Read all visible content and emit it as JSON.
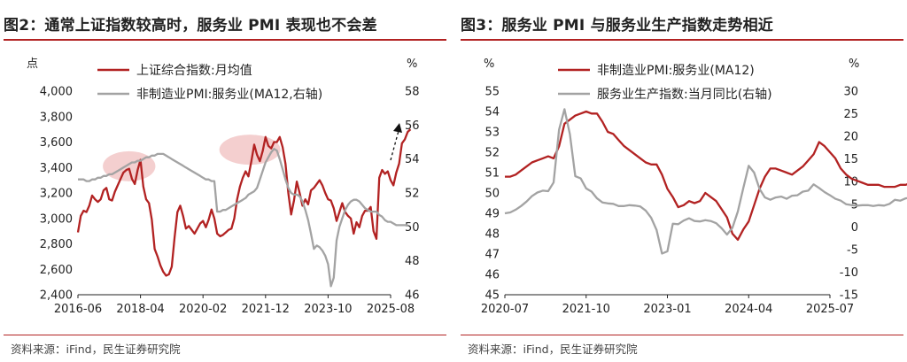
{
  "left": {
    "title": "图2：通常上证指数较高时，服务业 PMI 表现也不会差",
    "source": "资料来源：iFind，民生证券研究院",
    "left_unit": "点",
    "right_unit": "%",
    "annotation_arrow": "dashed-up-arrow",
    "highlight_color": "#f2c7c7",
    "chart_data": {
      "type": "line",
      "x_tick_labels": [
        "2016-06",
        "2018-04",
        "2020-02",
        "2021-12",
        "2023-10",
        "2025-08"
      ],
      "x_range": [
        "2016-06",
        "2025-08"
      ],
      "left_axis": {
        "ylim": [
          2400,
          4000
        ],
        "ticks": [
          "2,400",
          "2,600",
          "2,800",
          "3,000",
          "3,200",
          "3,400",
          "3,600",
          "3,800",
          "4,000"
        ]
      },
      "right_axis": {
        "ylim": [
          46,
          58
        ],
        "ticks": [
          "46",
          "48",
          "50",
          "52",
          "54",
          "56",
          "58"
        ]
      },
      "series": [
        {
          "name": "上证综合指数:月均值",
          "axis": "left",
          "color": "#b22222",
          "start": "2016-06",
          "values": [
            2890,
            3020,
            3060,
            3050,
            3100,
            3180,
            3150,
            3130,
            3150,
            3220,
            3240,
            3150,
            3140,
            3210,
            3260,
            3310,
            3360,
            3380,
            3390,
            3310,
            3270,
            3380,
            3460,
            3250,
            3150,
            3120,
            2990,
            2760,
            2700,
            2630,
            2580,
            2550,
            2560,
            2620,
            2850,
            3050,
            3100,
            3020,
            2920,
            2940,
            2910,
            2880,
            2920,
            2960,
            2980,
            2930,
            2990,
            3070,
            3000,
            2880,
            2860,
            2870,
            2890,
            2910,
            2920,
            3000,
            3150,
            3250,
            3320,
            3370,
            3330,
            3450,
            3580,
            3500,
            3450,
            3530,
            3640,
            3570,
            3550,
            3600,
            3600,
            3640,
            3560,
            3430,
            3200,
            3030,
            3140,
            3290,
            3200,
            3100,
            3150,
            3110,
            3220,
            3240,
            3270,
            3300,
            3260,
            3200,
            3150,
            3140,
            3080,
            2980,
            3050,
            3120,
            3050,
            3020,
            3000,
            2880,
            2970,
            2930,
            3020,
            3060,
            3060,
            3090,
            2900,
            2840,
            3320,
            3380,
            3350,
            3370,
            3300,
            3260,
            3360,
            3430,
            3590,
            3620,
            3680,
            3700
          ],
          "highlights": [
            {
              "from": "2017-04",
              "to": "2018-08",
              "center": 3410
            },
            {
              "from": "2020-09",
              "to": "2022-04",
              "center": 3540
            }
          ]
        },
        {
          "name": "非制造业PMI:服务业(MA12,右轴)",
          "axis": "right",
          "color": "#a3a3a3",
          "start": "2016-06",
          "values": [
            52.8,
            52.8,
            52.8,
            52.7,
            52.7,
            52.8,
            52.8,
            52.9,
            52.9,
            53.0,
            53.0,
            53.1,
            53.1,
            53.2,
            53.3,
            53.4,
            53.5,
            53.6,
            53.7,
            53.8,
            53.8,
            53.9,
            53.9,
            54.0,
            54.1,
            54.1,
            54.2,
            54.2,
            54.3,
            54.3,
            54.3,
            54.2,
            54.1,
            54.0,
            53.9,
            53.8,
            53.7,
            53.6,
            53.5,
            53.4,
            53.3,
            53.2,
            53.1,
            53.0,
            52.9,
            52.8,
            52.8,
            52.7,
            52.7,
            50.9,
            50.9,
            51.0,
            51.0,
            51.1,
            51.2,
            51.3,
            51.4,
            51.5,
            51.6,
            51.7,
            51.9,
            52.0,
            52.1,
            52.3,
            52.8,
            53.3,
            53.8,
            54.1,
            54.4,
            54.6,
            54.5,
            54.0,
            53.4,
            52.8,
            52.3,
            52.0,
            51.9,
            51.9,
            51.8,
            51.5,
            51.0,
            50.4,
            49.6,
            48.7,
            48.9,
            48.8,
            48.6,
            48.3,
            47.8,
            46.5,
            47.0,
            49.2,
            50.0,
            50.5,
            51.0,
            51.3,
            51.5,
            51.6,
            51.6,
            51.5,
            51.3,
            51.1,
            51.0,
            50.9,
            50.9,
            50.9,
            50.7,
            50.6,
            50.4,
            50.3,
            50.3,
            50.2,
            50.1,
            50.1,
            50.1,
            50.1,
            50.1
          ]
        }
      ]
    }
  },
  "right": {
    "title": "图3：服务业 PMI 与服务业生产指数走势相近",
    "source": "资料来源：iFind，民生证券研究院",
    "left_unit": "%",
    "right_unit": "%",
    "chart_data": {
      "type": "line",
      "x_tick_labels": [
        "2020-07",
        "2021-10",
        "2023-01",
        "2024-04",
        "2025-07"
      ],
      "x_range": [
        "2020-07",
        "2025-07"
      ],
      "left_axis": {
        "ylim": [
          45,
          55
        ],
        "ticks": [
          "45",
          "46",
          "47",
          "48",
          "49",
          "50",
          "51",
          "52",
          "53",
          "54",
          "55"
        ]
      },
      "right_axis": {
        "ylim": [
          -15,
          30
        ],
        "ticks": [
          "-15",
          "-10",
          "-5",
          "0",
          "5",
          "10",
          "15",
          "20",
          "25",
          "30"
        ]
      },
      "series": [
        {
          "name": "非制造业PMI:服务业(MA12)",
          "axis": "left",
          "color": "#b22222",
          "start": "2020-07",
          "values": [
            50.8,
            50.8,
            50.9,
            51.1,
            51.3,
            51.5,
            51.6,
            51.7,
            51.8,
            51.7,
            52.3,
            53.4,
            53.6,
            53.8,
            53.9,
            54.0,
            53.9,
            53.9,
            53.5,
            53.0,
            52.9,
            52.6,
            52.3,
            52.1,
            51.9,
            51.7,
            51.5,
            51.4,
            51.4,
            50.9,
            50.2,
            49.8,
            49.3,
            49.4,
            49.6,
            49.5,
            49.6,
            50.0,
            49.8,
            49.6,
            49.2,
            48.8,
            48.0,
            47.7,
            48.2,
            48.6,
            49.4,
            50.2,
            50.8,
            51.2,
            51.2,
            51.1,
            51.0,
            50.9,
            51.1,
            51.3,
            51.6,
            51.9,
            52.5,
            52.3,
            52.0,
            51.7,
            51.2,
            50.9,
            50.7,
            50.6,
            50.5,
            50.4,
            50.4,
            50.4,
            50.3,
            50.3,
            50.3,
            50.4,
            50.4,
            50.5,
            50.6,
            50.6,
            50.5,
            50.4,
            50.3,
            50.3,
            50.3,
            50.3,
            50.3
          ]
        },
        {
          "name": "服务业生产指数:当月同比(右轴)",
          "axis": "right",
          "color": "#a3a3a3",
          "start": "2020-07",
          "values": [
            3.0,
            3.2,
            3.8,
            4.6,
            5.6,
            6.8,
            7.6,
            8.0,
            7.9,
            9.8,
            21.5,
            26.0,
            20.5,
            11.2,
            10.7,
            8.5,
            7.8,
            6.3,
            5.4,
            5.2,
            5.1,
            4.6,
            4.6,
            4.8,
            4.7,
            4.5,
            3.6,
            2.0,
            -0.7,
            -5.9,
            -5.4,
            0.7,
            0.6,
            1.4,
            1.9,
            1.3,
            1.2,
            1.5,
            1.3,
            0.8,
            -0.3,
            -1.7,
            -0.2,
            3.4,
            8.5,
            13.5,
            12.0,
            8.4,
            6.5,
            6.0,
            6.5,
            6.7,
            6.2,
            6.9,
            7.0,
            7.8,
            8.0,
            9.4,
            8.6,
            7.7,
            7.0,
            6.2,
            5.8,
            5.0,
            4.8,
            4.7,
            4.8,
            4.8,
            4.6,
            4.8,
            4.7,
            5.1,
            6.0,
            5.8,
            6.3,
            6.5,
            6.6,
            6.5,
            6.5,
            6.5,
            6.4,
            6.3,
            6.2,
            6.1,
            6.0
          ]
        }
      ]
    }
  }
}
